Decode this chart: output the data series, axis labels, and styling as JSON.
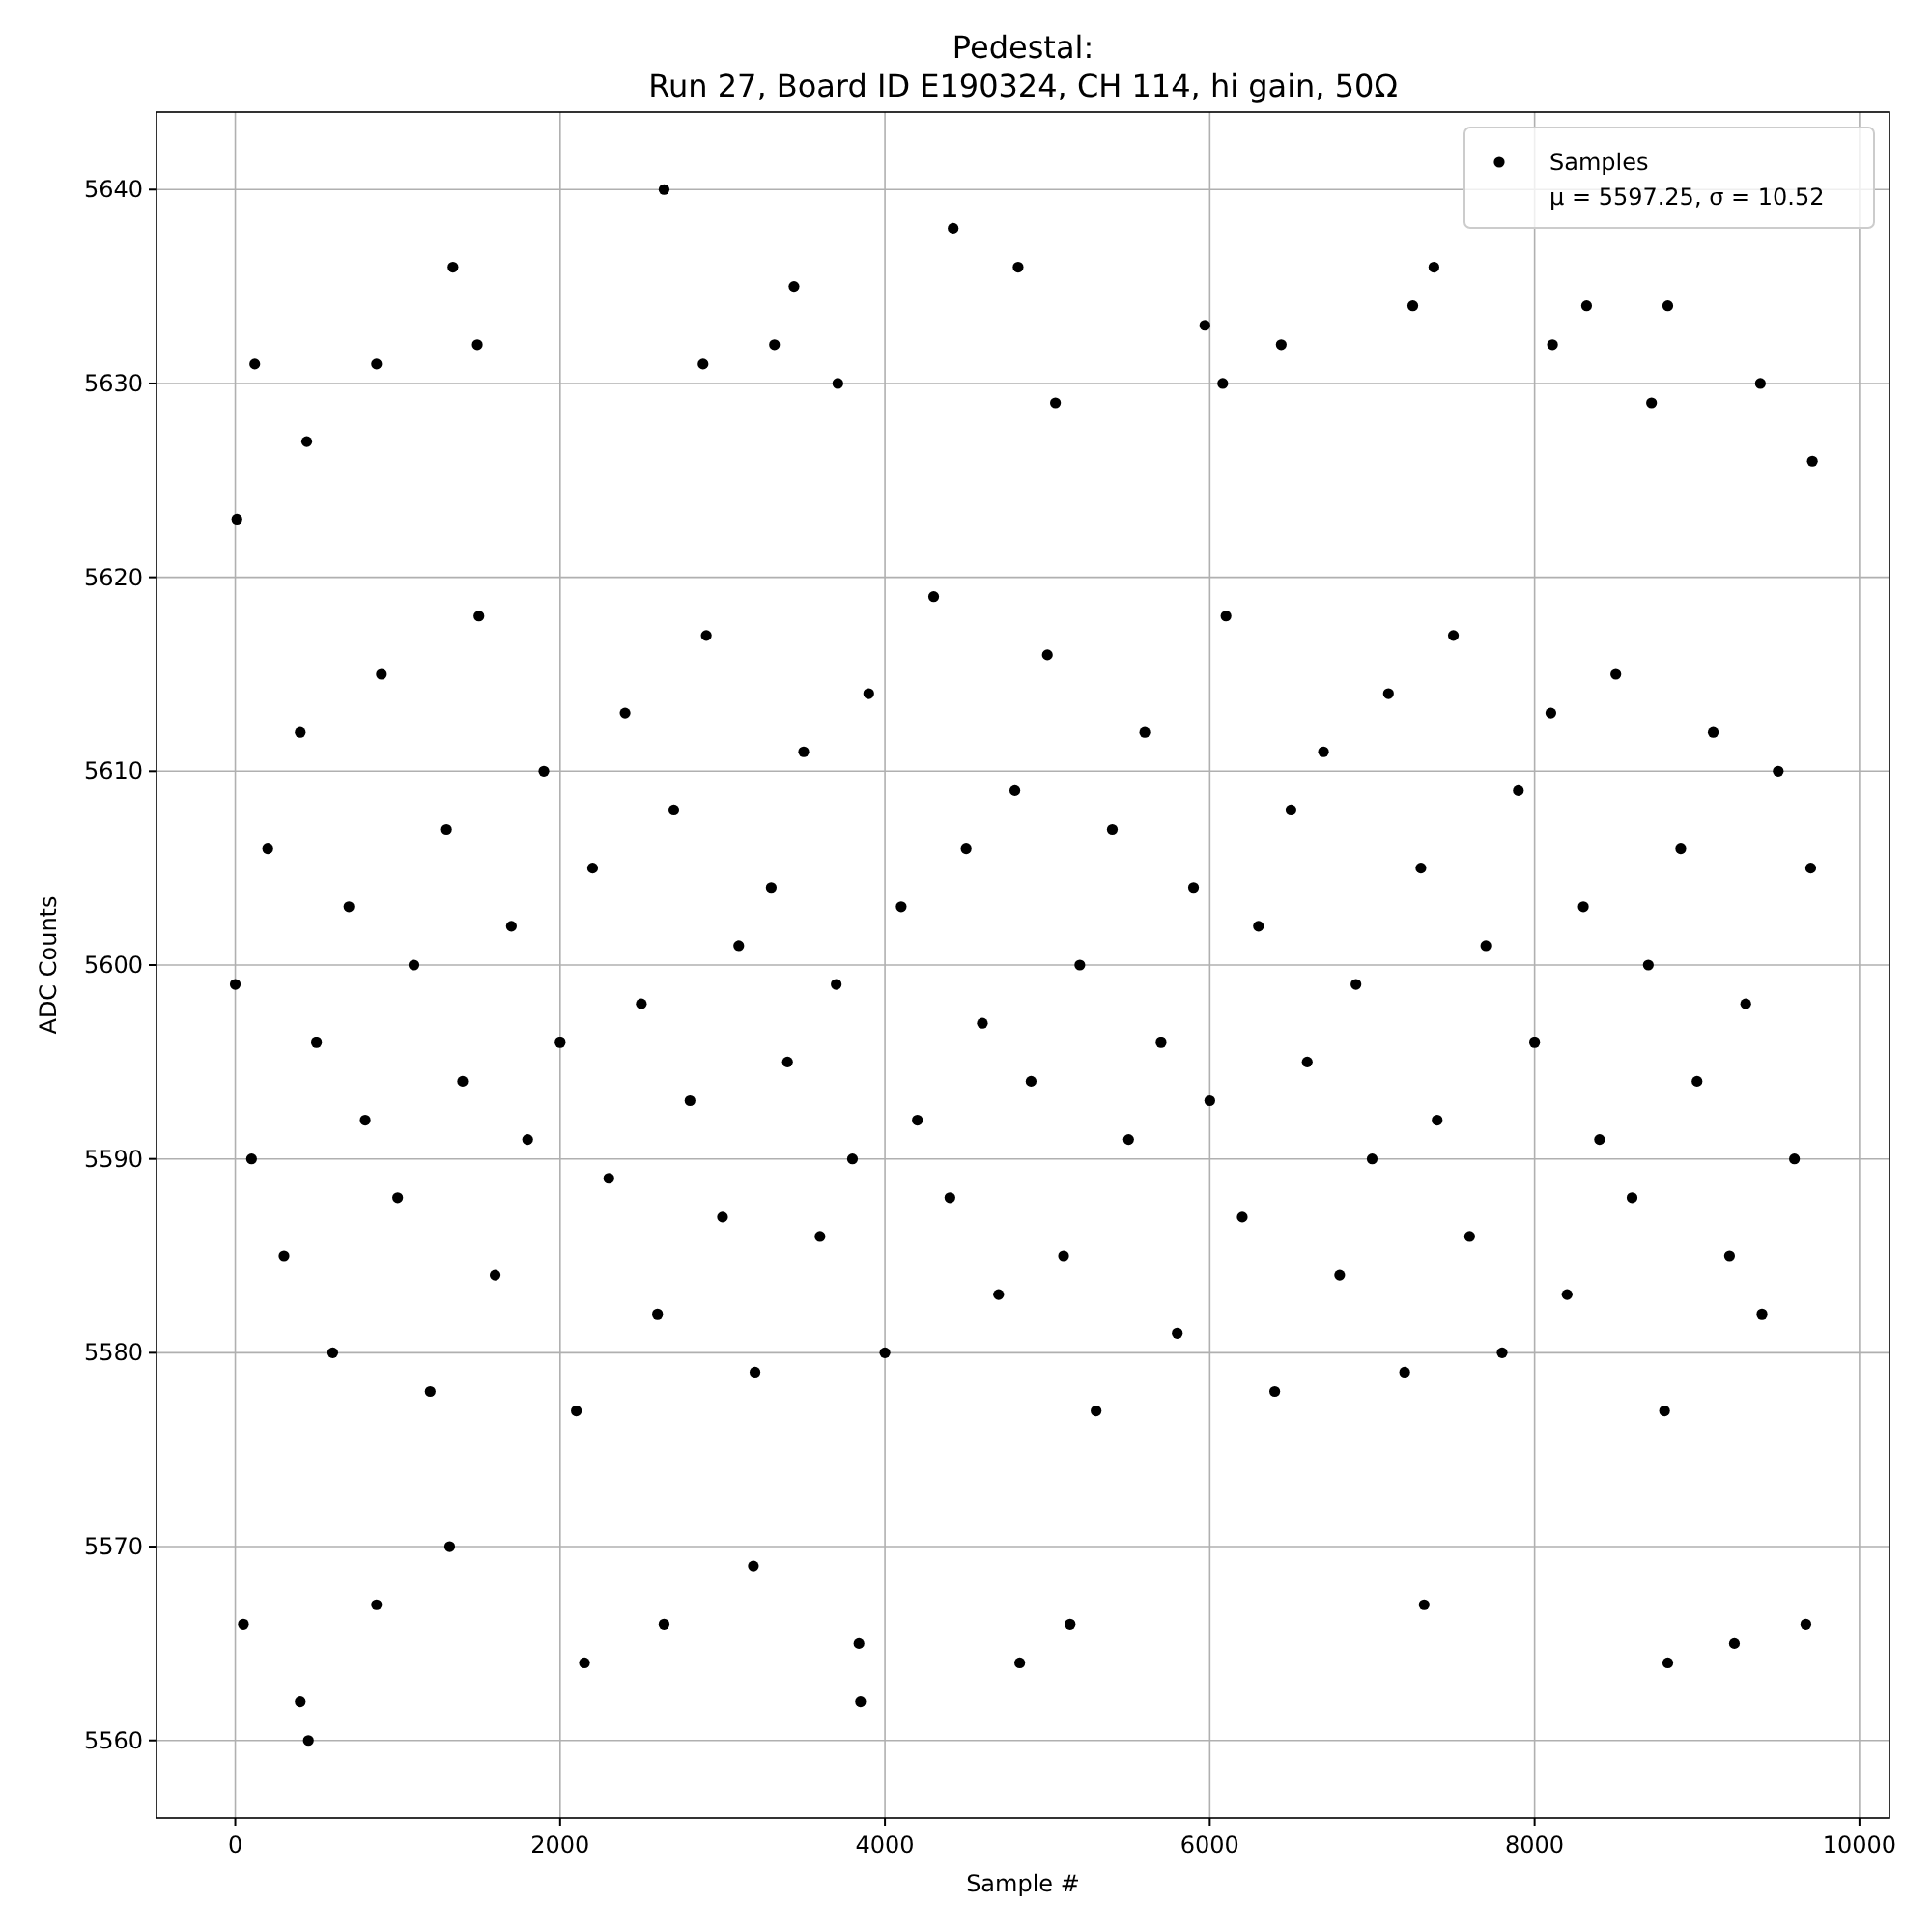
{
  "chart_data": {
    "type": "scatter",
    "title": "Pedestal:",
    "subtitle": "Run 27, Board ID E190324, CH 114, hi gain, 50Ω",
    "xlabel": "Sample #",
    "ylabel": "ADC Counts",
    "xlim": [
      -485,
      10185
    ],
    "ylim": [
      5556,
      5644
    ],
    "xticks": [
      0,
      2000,
      4000,
      6000,
      8000,
      10000
    ],
    "yticks": [
      5560,
      5570,
      5580,
      5590,
      5600,
      5610,
      5620,
      5630,
      5640
    ],
    "grid": true,
    "legend": "top right",
    "marker": "circle",
    "annotations": [
      "μ = 5597.25, σ = 10.52"
    ],
    "series": [
      {
        "name": "Samples",
        "color": "#000000",
        "x": [
          0,
          100,
          200,
          300,
          400,
          500,
          600,
          700,
          800,
          900,
          1000,
          1100,
          1200,
          1300,
          1400,
          1500,
          1600,
          1700,
          1800,
          1900,
          2000,
          2100,
          2200,
          2300,
          2400,
          2500,
          2600,
          2700,
          2800,
          2900,
          3000,
          3100,
          3200,
          3300,
          3400,
          3500,
          3600,
          3700,
          3800,
          3900,
          4000,
          4100,
          4200,
          4300,
          4400,
          4500,
          4600,
          4700,
          4800,
          4900,
          5000,
          5100,
          5200,
          5300,
          5400,
          5500,
          5600,
          5700,
          5800,
          5900,
          6000,
          6100,
          6200,
          6300,
          6400,
          6500,
          6600,
          6700,
          6800,
          6900,
          7000,
          7100,
          7200,
          7300,
          7400,
          7500,
          7600,
          7700,
          7800,
          7900,
          8000,
          8100,
          8200,
          8300,
          8400,
          8500,
          8600,
          8700,
          8800,
          8900,
          9000,
          9100,
          9200,
          9300,
          9400,
          9500,
          9600,
          9700,
          10,
          50,
          120,
          400,
          450,
          440,
          870,
          870,
          1340,
          1490,
          1320,
          2150,
          2640,
          2640,
          2880,
          3190,
          3440,
          3320,
          3710,
          3850,
          3840,
          4420,
          4820,
          4830,
          5050,
          5140,
          5970,
          6080,
          6440,
          7250,
          7320,
          7380,
          8110,
          8320,
          8720,
          8820,
          8820,
          9230,
          9390,
          9670,
          9710
        ],
        "values": [
          5599,
          5590,
          5606,
          5585,
          5612,
          5596,
          5580,
          5603,
          5592,
          5615,
          5588,
          5600,
          5578,
          5607,
          5594,
          5618,
          5584,
          5602,
          5591,
          5610,
          5596,
          5577,
          5605,
          5589,
          5613,
          5598,
          5582,
          5608,
          5593,
          5617,
          5587,
          5601,
          5579,
          5604,
          5595,
          5611,
          5586,
          5599,
          5590,
          5614,
          5580,
          5603,
          5592,
          5619,
          5588,
          5606,
          5597,
          5583,
          5609,
          5594,
          5616,
          5585,
          5600,
          5577,
          5607,
          5591,
          5612,
          5596,
          5581,
          5604,
          5593,
          5618,
          5587,
          5602,
          5578,
          5608,
          5595,
          5611,
          5584,
          5599,
          5590,
          5614,
          5579,
          5605,
          5592,
          5617,
          5586,
          5601,
          5580,
          5609,
          5596,
          5613,
          5583,
          5603,
          5591,
          5615,
          5588,
          5600,
          5577,
          5606,
          5594,
          5612,
          5585,
          5598,
          5582,
          5610,
          5590,
          5605,
          5623,
          5566,
          5631,
          5562,
          5560,
          5627,
          5567,
          5631,
          5636,
          5632,
          5570,
          5564,
          5640,
          5566,
          5631,
          5569,
          5635,
          5632,
          5630,
          5562,
          5565,
          5638,
          5636,
          5564,
          5629,
          5566,
          5633,
          5630,
          5632,
          5634,
          5567,
          5636,
          5632,
          5634,
          5629,
          5634,
          5564,
          5565,
          5630,
          5566,
          5626
        ]
      }
    ]
  }
}
